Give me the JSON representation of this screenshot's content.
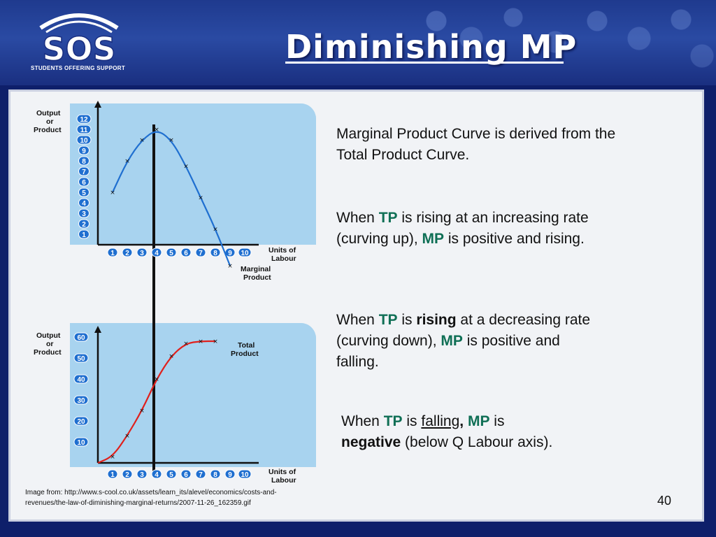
{
  "header": {
    "logo_text": "SOS",
    "logo_tagline": "STUDENTS OFFERING SUPPORT",
    "title": "Diminishing MP"
  },
  "colors": {
    "background": "#0e1f6a",
    "graph_area": "#a8d3ef",
    "tp_curve": "#e0201c",
    "mp_curve": "#1f6fd0",
    "tp_mp_text": "#0f6f55"
  },
  "chart_data": [
    {
      "type": "line",
      "ylabel": "Output or Product",
      "xlabel": "Units of Labour",
      "series": [
        {
          "name": "Marginal Product",
          "x": [
            1,
            2,
            3,
            4,
            5,
            6,
            7,
            8,
            9
          ],
          "values": [
            5,
            8,
            10,
            11,
            10,
            7.5,
            4.5,
            1.5,
            -2
          ]
        }
      ],
      "x_ticks": [
        "1",
        "2",
        "3",
        "4",
        "5",
        "6",
        "7",
        "8",
        "9",
        "10"
      ],
      "y_ticks": [
        "1",
        "2",
        "3",
        "4",
        "5",
        "6",
        "7",
        "8",
        "9",
        "10",
        "11",
        "12"
      ],
      "ylim": [
        0,
        12
      ],
      "xlim": [
        0,
        10
      ]
    },
    {
      "type": "line",
      "ylabel": "Output or Product",
      "xlabel": "Units of Labour",
      "series": [
        {
          "name": "Total Product",
          "x": [
            0,
            1,
            2,
            3,
            4,
            5,
            6,
            7,
            8
          ],
          "values": [
            0,
            3,
            13,
            25,
            40,
            51,
            57,
            58,
            58
          ]
        }
      ],
      "x_ticks": [
        "1",
        "2",
        "3",
        "4",
        "5",
        "6",
        "7",
        "8",
        "9",
        "10"
      ],
      "y_ticks": [
        "10",
        "20",
        "30",
        "40",
        "50",
        "60"
      ],
      "ylim": [
        0,
        60
      ],
      "xlim": [
        0,
        10
      ]
    }
  ],
  "text": {
    "p1": "Marginal Product Curve is derived from the Total Product Curve.",
    "p2": {
      "a": "When ",
      "tp": "TP",
      "b": " is rising at an increasing rate (curving up), ",
      "mp": "MP",
      "c": " is positive and rising."
    },
    "p3": {
      "a": "When ",
      "tp": "TP",
      "b": " is ",
      "rising": "rising",
      "c": " at a decreasing rate (curving down), ",
      "mp": "MP",
      "d": " is positive and falling."
    },
    "p4": {
      "a": "When ",
      "tp": "TP",
      "b": " is ",
      "falling": "falling",
      "comma": ",",
      "mp": "MP",
      "c": " is ",
      "negative": "negative",
      "d": " (below Q Labour axis)."
    }
  },
  "footer": {
    "source": "Image from: http://www.s-cool.co.uk/assets/learn_its/alevel/economics/costs-and-revenues/the-law-of-diminishing-marginal-returns/2007-11-26_162359.gif",
    "page_number": "40"
  }
}
